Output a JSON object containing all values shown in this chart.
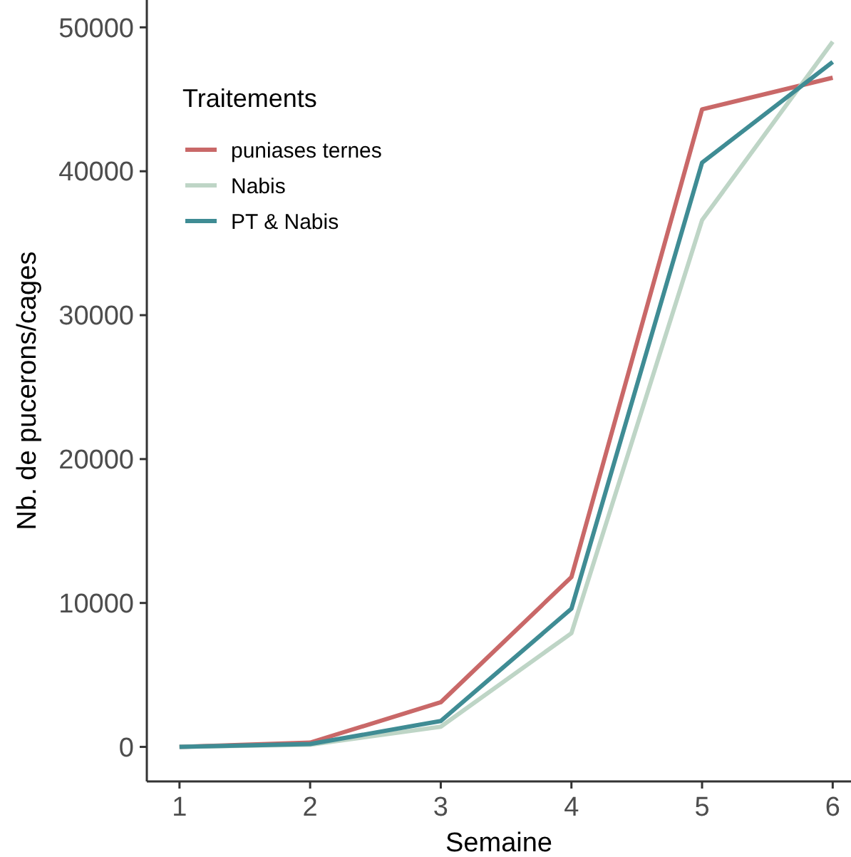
{
  "chart_data": {
    "type": "line",
    "xlabel": "Semaine",
    "ylabel": "Nb. de pucerons/cages",
    "legend_title": "Traitements",
    "legend": "top left",
    "grid": false,
    "x": [
      1,
      2,
      3,
      4,
      5,
      6
    ],
    "xlim": [
      0.75,
      6.14
    ],
    "xticks": [
      1,
      2,
      3,
      4,
      5,
      6
    ],
    "ylim": [
      -2400,
      51900
    ],
    "yticks": [
      0,
      10000,
      20000,
      30000,
      40000,
      50000
    ],
    "series": [
      {
        "name": "puniases ternes",
        "color": "#c96868",
        "values": [
          0,
          300,
          3100,
          11800,
          44300,
          46500
        ]
      },
      {
        "name": "Nabis",
        "color": "#bed5c6",
        "values": [
          0,
          150,
          1400,
          7900,
          36600,
          49000
        ]
      },
      {
        "name": "PT & Nabis",
        "color": "#3f8c94",
        "values": [
          0,
          200,
          1800,
          9600,
          40600,
          47600
        ]
      }
    ]
  }
}
